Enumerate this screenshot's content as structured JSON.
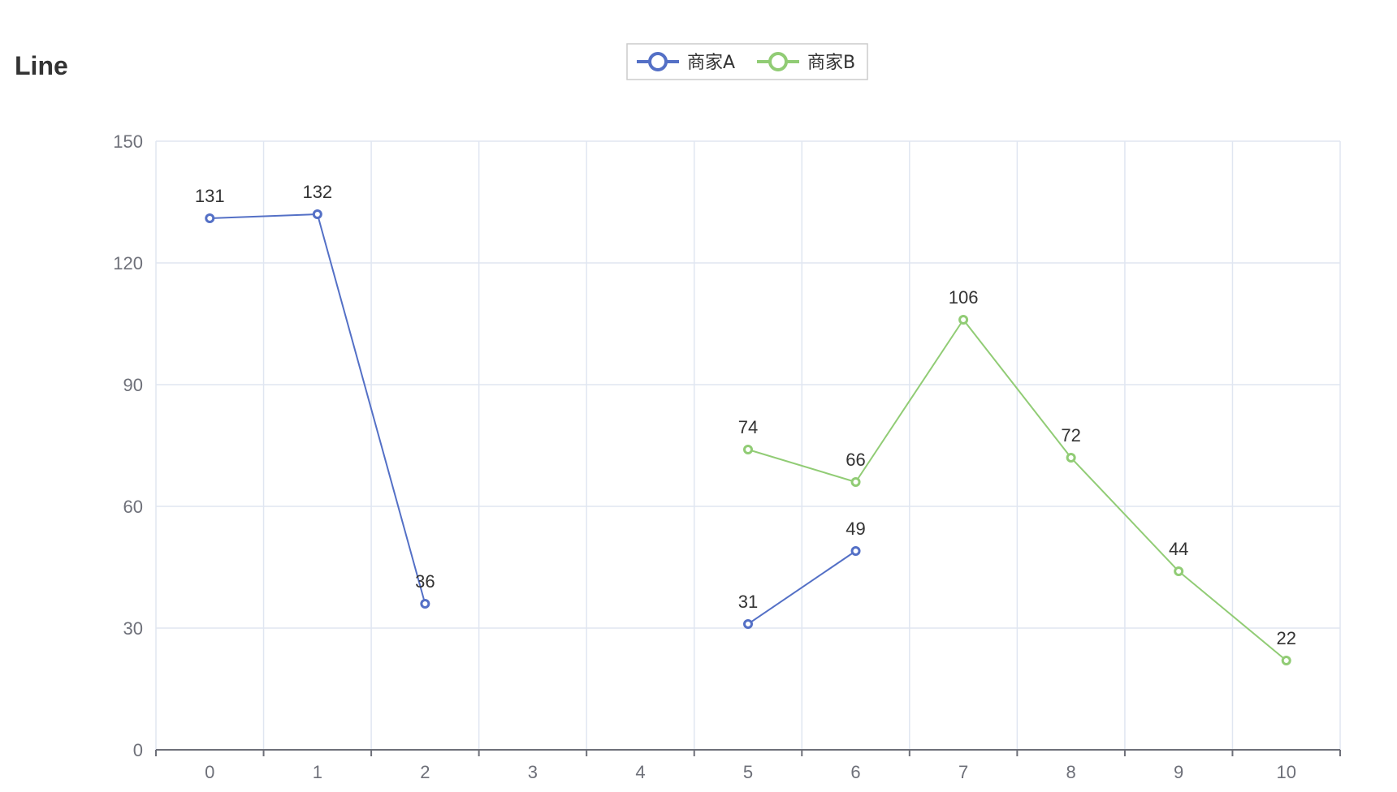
{
  "chart_data": {
    "type": "line",
    "title": "Line",
    "xlabel": "",
    "ylabel": "",
    "categories": [
      "0",
      "1",
      "2",
      "3",
      "4",
      "5",
      "6",
      "7",
      "8",
      "9",
      "10"
    ],
    "ylim": [
      0,
      150
    ],
    "y_ticks": [
      "0",
      "30",
      "60",
      "90",
      "120",
      "150"
    ],
    "grid": true,
    "legend_position": "top-center",
    "series": [
      {
        "name": "商家A",
        "color": "#5470c6",
        "values": [
          131,
          132,
          36,
          null,
          null,
          31,
          49,
          null,
          null,
          null,
          null
        ]
      },
      {
        "name": "商家B",
        "color": "#91cc75",
        "values": [
          null,
          null,
          null,
          null,
          null,
          74,
          66,
          106,
          72,
          44,
          22
        ]
      }
    ]
  }
}
